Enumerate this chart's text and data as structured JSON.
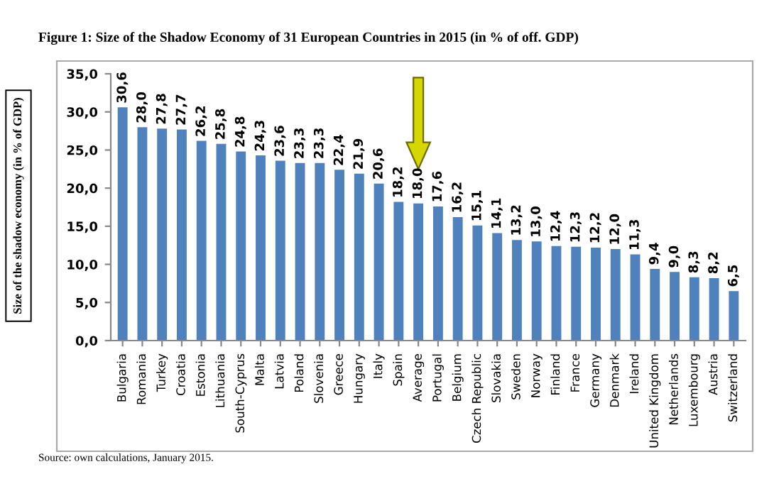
{
  "chart_data": {
    "type": "bar",
    "title": "Figure 1: Size of the Shadow Economy of 31 European Countries in 2015 (in % of off. GDP)",
    "ylabel": "Size of the shadow economy (in % of GDP)",
    "annotations": [
      "Source: own calculations, January 2015."
    ],
    "categories": [
      "Bulgaria",
      "Romania",
      "Turkey",
      "Croatia",
      "Estonia",
      "Lithuania",
      "South-Cyprus",
      "Malta",
      "Latvia",
      "Poland",
      "Slovenia",
      "Greece",
      "Hungary",
      "Italy",
      "Spain",
      "Average",
      "Portugal",
      "Belgium",
      "Czech Republic",
      "Slovakia",
      "Sweden",
      "Norway",
      "Finland",
      "France",
      "Germany",
      "Denmark",
      "Ireland",
      "United Kingdom",
      "Netherlands",
      "Luxembourg",
      "Austria",
      "Switzerland"
    ],
    "values": [
      30.6,
      28.0,
      27.8,
      27.7,
      26.2,
      25.8,
      24.8,
      24.3,
      23.6,
      23.3,
      23.3,
      22.4,
      21.9,
      20.6,
      18.2,
      18.0,
      17.6,
      16.2,
      15.1,
      14.1,
      13.2,
      13.0,
      12.4,
      12.3,
      12.2,
      12.0,
      11.3,
      9.4,
      9.0,
      8.3,
      8.2,
      6.5
    ],
    "value_labels": [
      "30,6",
      "28,0",
      "27,8",
      "27,7",
      "26,2",
      "25,8",
      "24,8",
      "24,3",
      "23,6",
      "23,3",
      "23,3",
      "22,4",
      "21,9",
      "20,6",
      "18,2",
      "18,0",
      "17,6",
      "16,2",
      "15,1",
      "14,1",
      "13,2",
      "13,0",
      "12,4",
      "12,3",
      "12,2",
      "12,0",
      "11,3",
      "9,4",
      "9,0",
      "8,3",
      "8,2",
      "6,5"
    ],
    "color": "#4f81bd",
    "ylim": [
      0,
      35
    ],
    "yticks": [
      {
        "value": 0,
        "label": "0,0"
      },
      {
        "value": 5,
        "label": "5,0"
      },
      {
        "value": 10,
        "label": "10,0"
      },
      {
        "value": 15,
        "label": "15,0"
      },
      {
        "value": 20,
        "label": "20,0"
      },
      {
        "value": 25,
        "label": "25,0"
      },
      {
        "value": 30,
        "label": "30,0"
      },
      {
        "value": 35,
        "label": "35,0"
      }
    ],
    "grid": false,
    "legend": false
  }
}
